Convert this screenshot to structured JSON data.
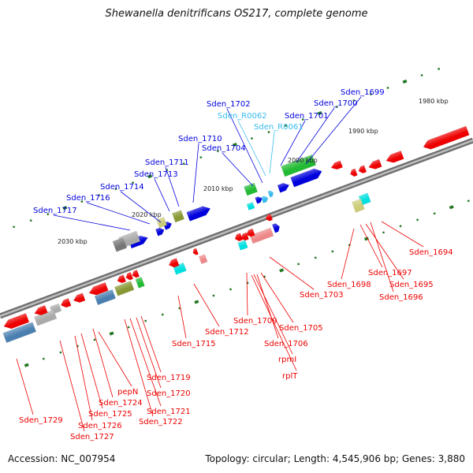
{
  "title": "Shewanella denitrificans OS217, complete genome",
  "accession": "Accession: NC_007954",
  "stats": "Topology: circular; Length: 4,545,906 bp; Genes: 3,880",
  "colors": {
    "plus_gene": "#0000dd",
    "minus_gene": "#ee0000",
    "rna_label": "#33bbee",
    "cyan_feature": "#00e0e0",
    "green_feature": "#22bb33",
    "olive_feature": "#889933",
    "gray_feature": "#aaaaaa",
    "steel_feature": "#4a7fb0",
    "khaki_feature": "#cccc77",
    "pink_feature": "#ee8888"
  },
  "ruler_labels": [
    "1980 kbp",
    "1990 kbp",
    "2000 kbp",
    "2010 kbp",
    "2020 kbp",
    "2030 kbp"
  ],
  "upper_labels": [
    {
      "text": "Sden_1699",
      "type": "gene"
    },
    {
      "text": "Sden_1700",
      "type": "gene"
    },
    {
      "text": "Sden_1701",
      "type": "gene"
    },
    {
      "text": "Sden_1702",
      "type": "gene"
    },
    {
      "text": "Sden_R0062",
      "type": "rna"
    },
    {
      "text": "Sden_R0061",
      "type": "rna"
    },
    {
      "text": "Sden_1704",
      "type": "gene"
    },
    {
      "text": "Sden_1710",
      "type": "gene"
    },
    {
      "text": "Sden_1711",
      "type": "gene"
    },
    {
      "text": "Sden_1713",
      "type": "gene"
    },
    {
      "text": "Sden_1714",
      "type": "gene"
    },
    {
      "text": "Sden_1716",
      "type": "gene"
    },
    {
      "text": "Sden_1717",
      "type": "gene"
    }
  ],
  "lower_labels": [
    {
      "text": "Sden_1694"
    },
    {
      "text": "Sden_1697"
    },
    {
      "text": "Sden_1698"
    },
    {
      "text": "Sden_1695"
    },
    {
      "text": "Sden_1696"
    },
    {
      "text": "Sden_1703"
    },
    {
      "text": "Sden_1709"
    },
    {
      "text": "Sden_1705"
    },
    {
      "text": "Sden_1706"
    },
    {
      "text": "rpmI"
    },
    {
      "text": "rplT"
    },
    {
      "text": "Sden_1712"
    },
    {
      "text": "Sden_1715"
    },
    {
      "text": "Sden_1719"
    },
    {
      "text": "Sden_1720"
    },
    {
      "text": "Sden_1721"
    },
    {
      "text": "Sden_1722"
    },
    {
      "text": "pepN"
    },
    {
      "text": "Sden_1724"
    },
    {
      "text": "Sden_1725"
    },
    {
      "text": "Sden_1726"
    },
    {
      "text": "Sden_1727"
    },
    {
      "text": "Sden_1729"
    }
  ]
}
